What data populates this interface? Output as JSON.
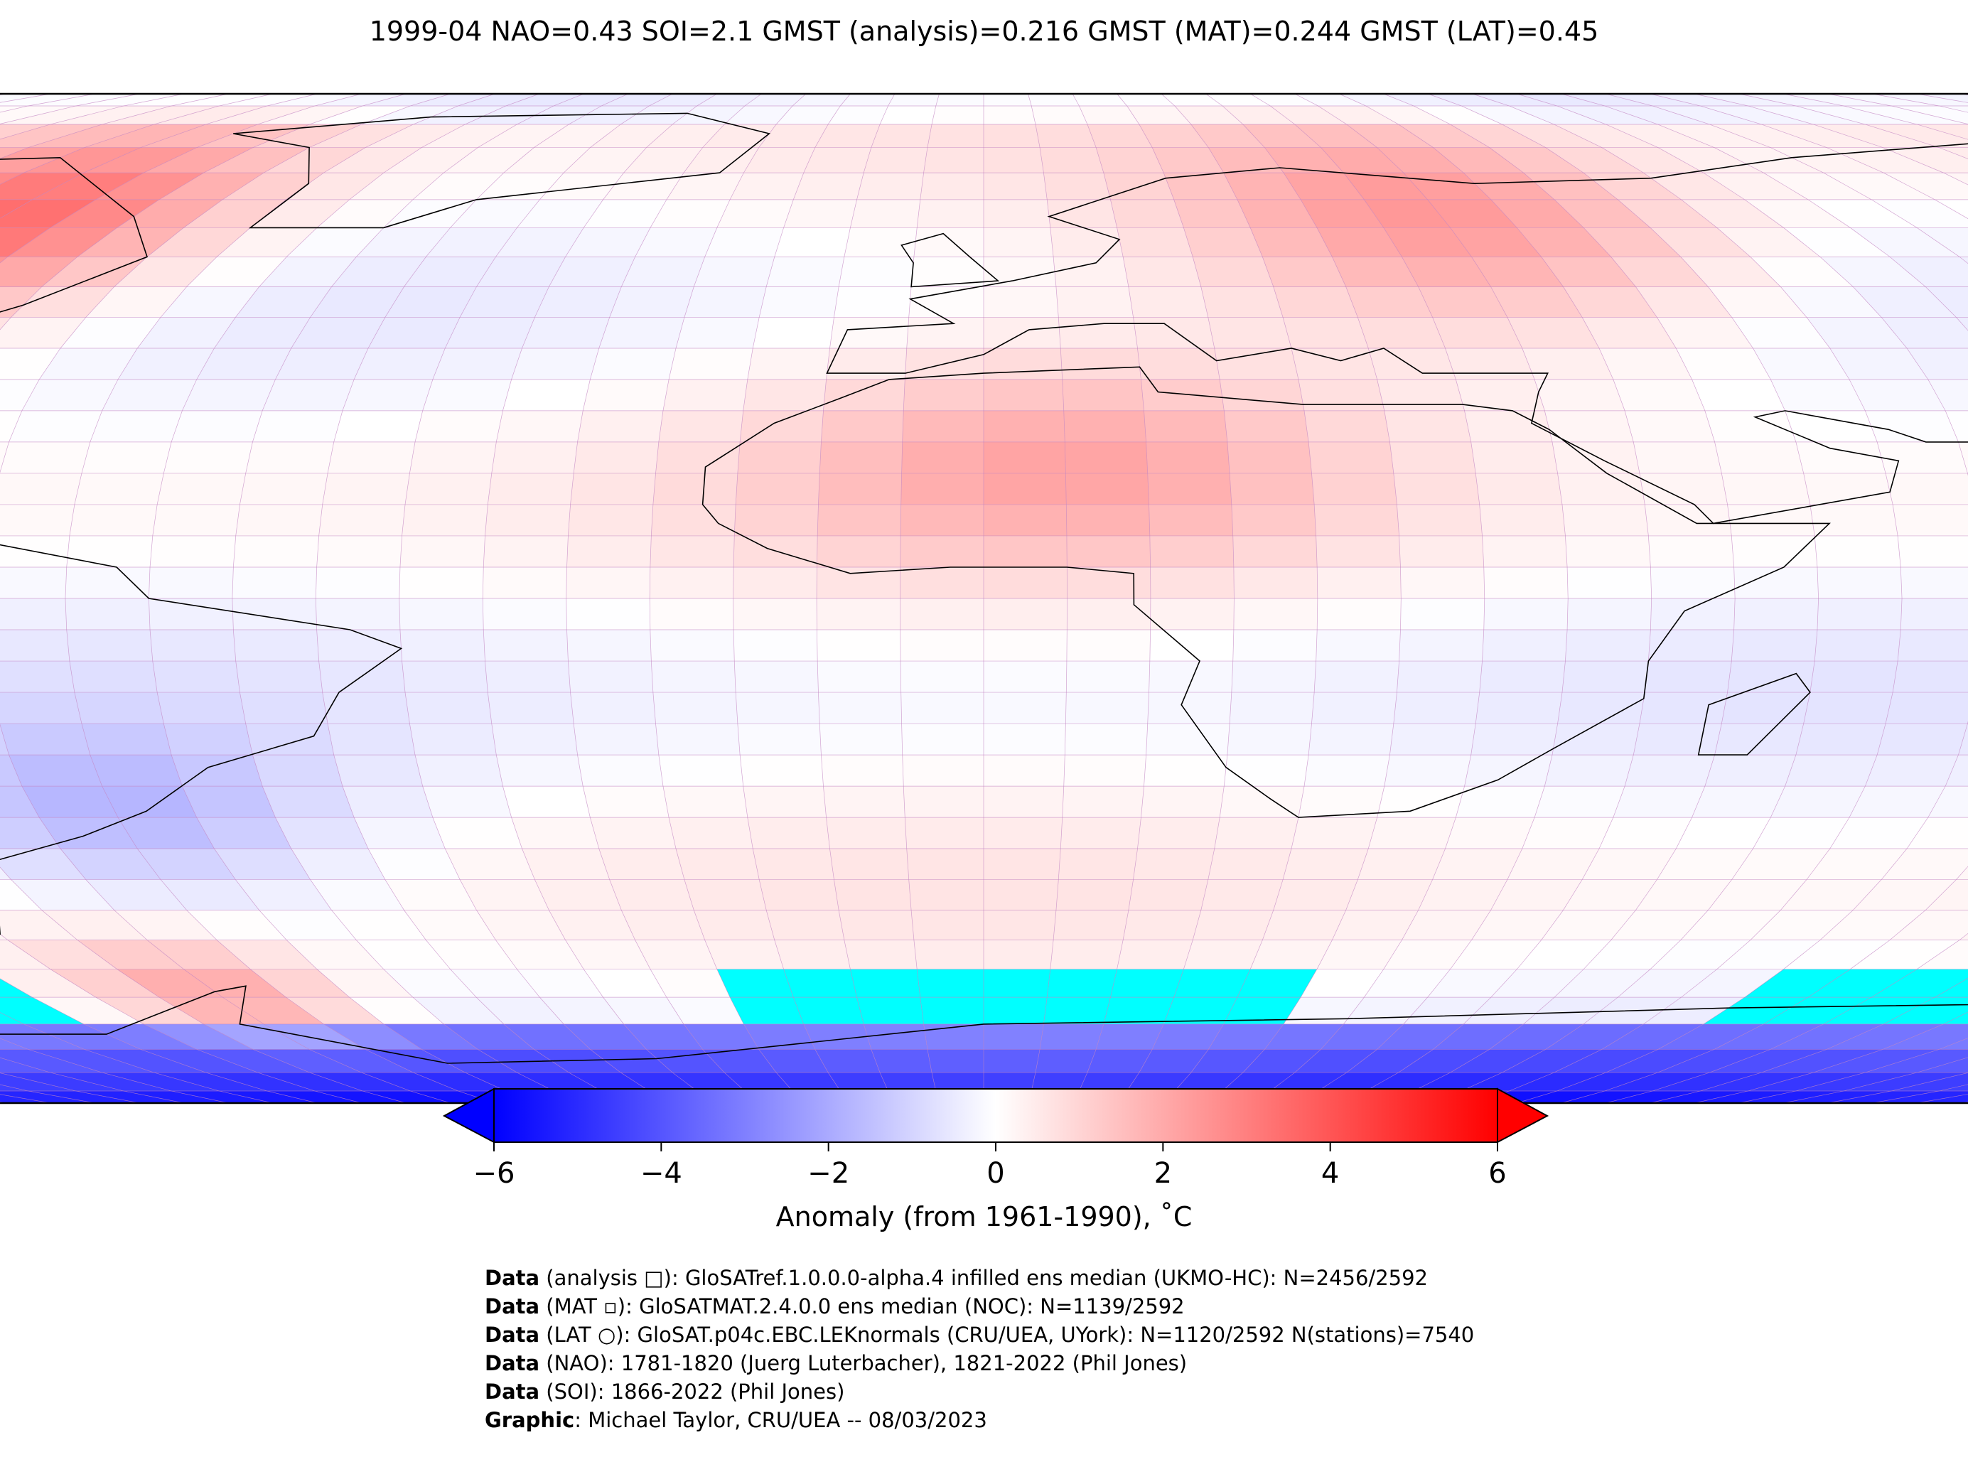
{
  "title": "1999-04 NAO=0.43 SOI=2.1 GMST (analysis)=0.216 GMST (MAT)=0.244 GMST (LAT)=0.45",
  "colorbar": {
    "ticks": [
      "−6",
      "−4",
      "−2",
      "0",
      "2",
      "4",
      "6"
    ],
    "label": "Anomaly (from 1961-1990), ˚C",
    "min": -6,
    "max": 6,
    "colors": {
      "low": "#0000ff",
      "mid": "#ffffff",
      "high": "#ff0000"
    }
  },
  "map": {
    "projection": "Robinson",
    "ocean_fill": "#ffffff",
    "missing_color": "#00ffff",
    "grid_color": "#c080c0"
  },
  "credits": [
    {
      "key": "Data",
      "text": " (analysis □): GloSATref.1.0.0.0-alpha.4 infilled ens median (UKMO-HC): N=2456/2592"
    },
    {
      "key": "Data",
      "text": " (MAT ▫): GloSATMAT.2.4.0.0 ens median (NOC): N=1139/2592"
    },
    {
      "key": "Data",
      "text": " (LAT ○): GloSAT.p04c.EBC.LEKnormals (CRU/UEA, UYork): N=1120/2592 N(stations)=7540"
    },
    {
      "key": "Data",
      "text": " (NAO): 1781-1820 (Juerg Luterbacher), 1821-2022 (Phil Jones)"
    },
    {
      "key": "Data",
      "text": " (SOI): 1866-2022 (Phil Jones)"
    },
    {
      "key": "Graphic",
      "text": ": Michael Taylor, CRU/UEA -- 08/03/2023"
    }
  ]
}
